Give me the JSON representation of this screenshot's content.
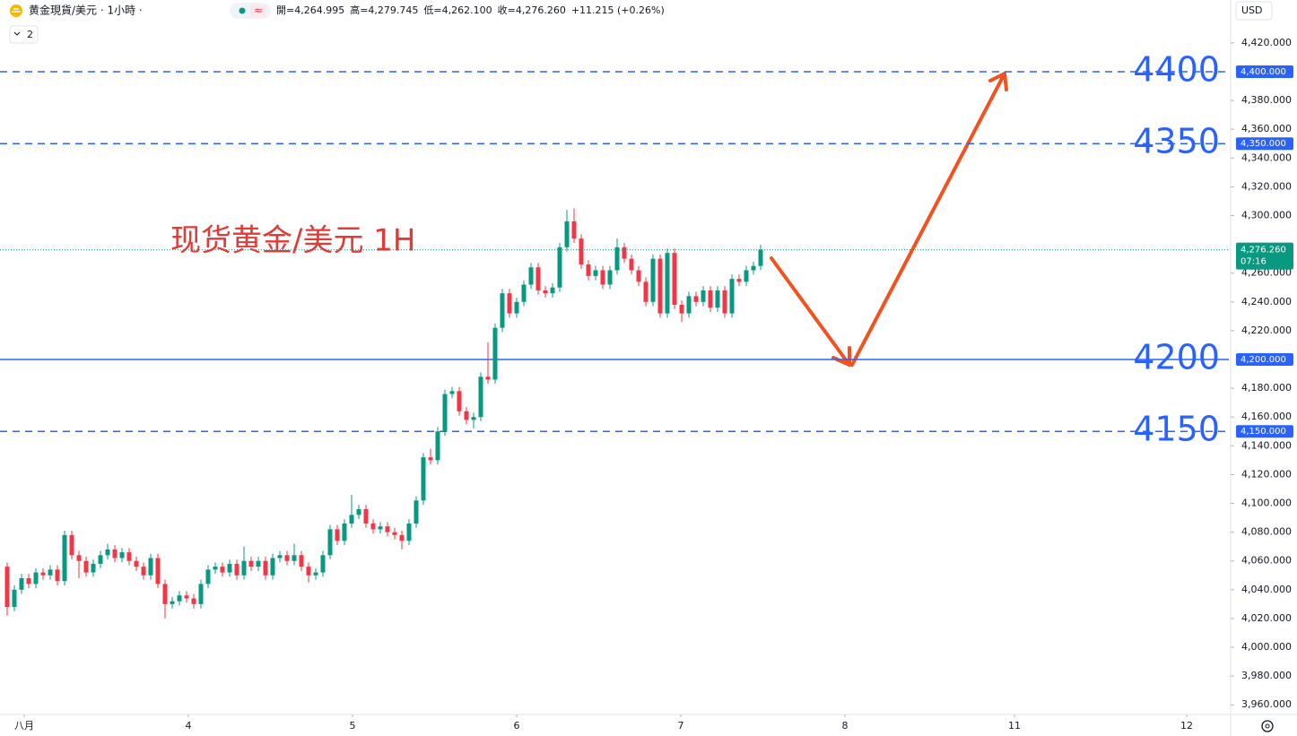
{
  "header": {
    "symbol": "黄金現貨/美元 · 1小時 ·",
    "indicator_icon": "≈",
    "ohlc": [
      {
        "label": "開=",
        "value": "4,264.995"
      },
      {
        "label": "高=",
        "value": "4,279.745"
      },
      {
        "label": "低=",
        "value": "4,262.100"
      },
      {
        "label": "收=",
        "value": "4,276.260"
      }
    ],
    "change": "+11.215 (+0.26%)",
    "count": "2",
    "currency": "USD"
  },
  "chart_data": {
    "type": "candlestick",
    "annotation": "现货黄金/美元 1H",
    "up_color": "#089981",
    "down_color": "#f23645",
    "level_color": "#2962ff",
    "arrow_color": "#f4511e",
    "categories": [
      null,
      null,
      null,
      null,
      null,
      null,
      null,
      null,
      null,
      null,
      null,
      null,
      null,
      null,
      null,
      null,
      null,
      null,
      null,
      null,
      null,
      null,
      null,
      null,
      null,
      null,
      null,
      null,
      null,
      null,
      null,
      null,
      null,
      null,
      null,
      null,
      null,
      null,
      null,
      null,
      null,
      null,
      null,
      null,
      null,
      null,
      null,
      null,
      null,
      null,
      null,
      null,
      null,
      null,
      null,
      null,
      null,
      null,
      null,
      null,
      null,
      null,
      null,
      null,
      null,
      null,
      null,
      null,
      null,
      null,
      null,
      null,
      null,
      null,
      null,
      null,
      null,
      null,
      null,
      null,
      null,
      null,
      null,
      null,
      null,
      null,
      null,
      null,
      null,
      null,
      null,
      null,
      null,
      null,
      null,
      null,
      null,
      null,
      null,
      null,
      null,
      null,
      null,
      null,
      null,
      null
    ],
    "open": [
      4056,
      4028,
      4040,
      4048,
      4044,
      4052,
      4050,
      4054,
      4046,
      4078,
      4064,
      4060,
      4052,
      4058,
      4064,
      4068,
      4062,
      4066,
      4060,
      4056,
      4050,
      4062,
      4044,
      4030,
      4032,
      4036,
      4034,
      4030,
      4044,
      4054,
      4056,
      4052,
      4058,
      4050,
      4060,
      4056,
      4060,
      4050,
      4062,
      4064,
      4060,
      4064,
      4056,
      4050,
      4052,
      4064,
      4082,
      4074,
      4086,
      4092,
      4096,
      4086,
      4082,
      4084,
      4080,
      4078,
      4074,
      4086,
      4102,
      4132,
      4130,
      4150,
      4176,
      4178,
      4164,
      4158,
      4160,
      4188,
      4186,
      4222,
      4246,
      4232,
      4240,
      4252,
      4264,
      4248,
      4246,
      4250,
      4278,
      4296,
      4284,
      4266,
      4258,
      4262,
      4252,
      4262,
      4278,
      4270,
      4262,
      4254,
      4240,
      4270,
      4232,
      4274,
      4238,
      4232,
      4244,
      4240,
      4248,
      4236,
      4248,
      4232,
      4256,
      4254,
      4262,
      4264.995
    ],
    "high": [
      4059,
      4043,
      4051,
      4051,
      4055,
      4055,
      4057,
      4057,
      4081,
      4081,
      4067,
      4063,
      4061,
      4067,
      4072,
      4071,
      4069,
      4069,
      4063,
      4059,
      4065,
      4065,
      4047,
      4035,
      4039,
      4039,
      4037,
      4047,
      4057,
      4059,
      4059,
      4061,
      4061,
      4070,
      4063,
      4063,
      4063,
      4065,
      4067,
      4067,
      4072,
      4067,
      4059,
      4055,
      4067,
      4085,
      4085,
      4089,
      4106,
      4099,
      4099,
      4089,
      4087,
      4087,
      4083,
      4081,
      4089,
      4105,
      4135,
      4138,
      4153,
      4179,
      4181,
      4181,
      4167,
      4163,
      4191,
      4212,
      4225,
      4249,
      4249,
      4243,
      4255,
      4267,
      4267,
      4251,
      4253,
      4281,
      4304,
      4305,
      4287,
      4269,
      4265,
      4265,
      4265,
      4284,
      4281,
      4273,
      4265,
      4257,
      4273,
      4273,
      4277,
      4277,
      4241,
      4247,
      4247,
      4251,
      4251,
      4251,
      4251,
      4259,
      4259,
      4265,
      4268,
      4279.745
    ],
    "low": [
      4022,
      4025,
      4037,
      4041,
      4041,
      4047,
      4047,
      4043,
      4043,
      4061,
      4048,
      4049,
      4049,
      4055,
      4061,
      4059,
      4059,
      4057,
      4053,
      4047,
      4047,
      4041,
      4020,
      4027,
      4029,
      4031,
      4027,
      4027,
      4041,
      4051,
      4049,
      4049,
      4047,
      4047,
      4053,
      4053,
      4047,
      4047,
      4059,
      4057,
      4057,
      4053,
      4045,
      4047,
      4049,
      4061,
      4071,
      4071,
      4083,
      4089,
      4083,
      4079,
      4079,
      4077,
      4075,
      4068,
      4071,
      4083,
      4099,
      4127,
      4127,
      4147,
      4173,
      4161,
      4155,
      4152,
      4157,
      4183,
      4183,
      4219,
      4229,
      4229,
      4237,
      4249,
      4245,
      4243,
      4243,
      4247,
      4275,
      4281,
      4263,
      4255,
      4255,
      4249,
      4249,
      4259,
      4267,
      4259,
      4251,
      4237,
      4237,
      4229,
      4229,
      4235,
      4226,
      4229,
      4237,
      4237,
      4233,
      4233,
      4229,
      4229,
      4251,
      4251,
      4259,
      4262.1
    ],
    "close": [
      4028,
      4040,
      4048,
      4044,
      4052,
      4050,
      4054,
      4046,
      4078,
      4064,
      4060,
      4052,
      4058,
      4064,
      4068,
      4062,
      4066,
      4060,
      4056,
      4050,
      4062,
      4044,
      4030,
      4032,
      4036,
      4034,
      4030,
      4044,
      4054,
      4056,
      4052,
      4058,
      4050,
      4060,
      4056,
      4060,
      4050,
      4062,
      4064,
      4060,
      4064,
      4056,
      4050,
      4052,
      4064,
      4082,
      4074,
      4086,
      4092,
      4096,
      4086,
      4082,
      4084,
      4080,
      4078,
      4074,
      4086,
      4102,
      4132,
      4130,
      4150,
      4176,
      4178,
      4164,
      4158,
      4160,
      4188,
      4186,
      4222,
      4246,
      4232,
      4240,
      4252,
      4264,
      4248,
      4246,
      4250,
      4278,
      4296,
      4284,
      4266,
      4258,
      4262,
      4252,
      4262,
      4278,
      4270,
      4262,
      4254,
      4240,
      4270,
      4232,
      4274,
      4238,
      4232,
      4244,
      4240,
      4248,
      4236,
      4248,
      4232,
      4256,
      4254,
      4262,
      4265,
      4276.26
    ],
    "xlim": [
      -1,
      170.25
    ],
    "xticks": [
      {
        "value": 2.375,
        "label": "八月"
      },
      {
        "value": 25.25,
        "label": "4"
      },
      {
        "value": 48.125,
        "label": "5"
      },
      {
        "value": 71,
        "label": "6"
      },
      {
        "value": 93.875,
        "label": "7"
      },
      {
        "value": 116.75,
        "label": "8"
      },
      {
        "value": 140.375,
        "label": "11"
      },
      {
        "value": 164.375,
        "label": "12"
      }
    ],
    "ylim": [
      3953.3,
      4449.8
    ],
    "yticks": [
      {
        "value": 4420,
        "label": "4,420.000"
      },
      {
        "value": 4380,
        "label": "4,380.000"
      },
      {
        "value": 4360,
        "label": "4,360.000"
      },
      {
        "value": 4340,
        "label": "4,340.000"
      },
      {
        "value": 4320,
        "label": "4,320.000"
      },
      {
        "value": 4300,
        "label": "4,300.000"
      },
      {
        "value": 4260,
        "label": "4,260.000"
      },
      {
        "value": 4240,
        "label": "4,240.000"
      },
      {
        "value": 4220,
        "label": "4,220.000"
      },
      {
        "value": 4180,
        "label": "4,180.000"
      },
      {
        "value": 4160,
        "label": "4,160.000"
      },
      {
        "value": 4140,
        "label": "4,140.000"
      },
      {
        "value": 4120,
        "label": "4,120.000"
      },
      {
        "value": 4100,
        "label": "4,100.000"
      },
      {
        "value": 4080,
        "label": "4,080.000"
      },
      {
        "value": 4060,
        "label": "4,060.000"
      },
      {
        "value": 4040,
        "label": "4,040.000"
      },
      {
        "value": 4020,
        "label": "4,020.000"
      },
      {
        "value": 4000,
        "label": "4,000.000"
      },
      {
        "value": 3980,
        "label": "3,980.000"
      },
      {
        "value": 3960,
        "label": "3,960.000"
      }
    ],
    "levels": [
      {
        "value": 4400,
        "label": "4400",
        "axis_label": "4,400.000",
        "style": "dashed"
      },
      {
        "value": 4350,
        "label": "4350",
        "axis_label": "4,350.000",
        "style": "dashed"
      },
      {
        "value": 4200,
        "label": "4200",
        "axis_label": "4,200.000",
        "style": "solid"
      },
      {
        "value": 4150,
        "label": "4150",
        "axis_label": "4,150.000",
        "style": "dashed"
      }
    ],
    "last_price": {
      "value": 4276.26,
      "label": "4,276.260",
      "countdown": "07:16"
    },
    "grid": false
  }
}
